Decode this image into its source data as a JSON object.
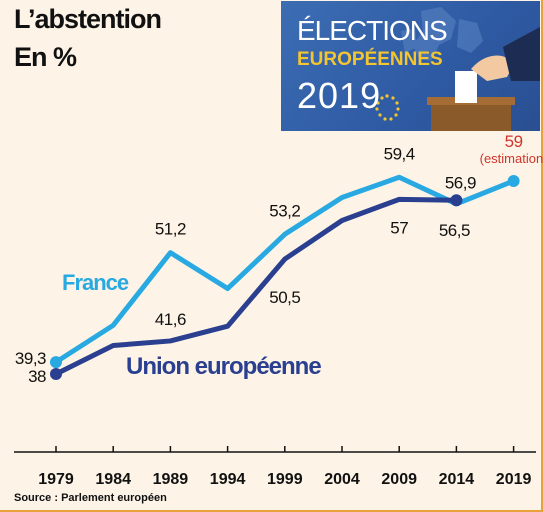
{
  "header": {
    "title": "L’abstention",
    "subtitle": "En %"
  },
  "banner": {
    "line1": "ÉLECTIONS",
    "line2": "EUROPÉENNES",
    "line3": "2019"
  },
  "source": "Source : Parlement européen",
  "colors": {
    "france": "#29a9e1",
    "ue": "#2a3f8f",
    "estimate": "#d2342b",
    "banner": "#2e5aa3"
  },
  "chart_data": {
    "type": "line",
    "x": [
      "1979",
      "1984",
      "1989",
      "1994",
      "1999",
      "2004",
      "2009",
      "2014",
      "2019"
    ],
    "series": [
      {
        "name": "France",
        "color": "#29a9e1",
        "values": [
          39.3,
          43.3,
          51.2,
          47.3,
          53.2,
          57.2,
          59.4,
          56.5,
          59
        ]
      },
      {
        "name": "Union européenne",
        "color": "#2a3f8f",
        "values": [
          38,
          41.1,
          41.6,
          43.2,
          50.5,
          54.7,
          57,
          56.9,
          null
        ]
      }
    ],
    "data_labels": [
      {
        "text": "39,3",
        "series": 0,
        "index": 0,
        "place": "left"
      },
      {
        "text": "38",
        "series": 1,
        "index": 0,
        "place": "left"
      },
      {
        "text": "51,2",
        "series": 0,
        "index": 2,
        "place": "above"
      },
      {
        "text": "41,6",
        "series": 1,
        "index": 2,
        "place": "above"
      },
      {
        "text": "53,2",
        "series": 0,
        "index": 4,
        "place": "above"
      },
      {
        "text": "50,5",
        "series": 1,
        "index": 4,
        "place": "below"
      },
      {
        "text": "59,4",
        "series": 0,
        "index": 6,
        "place": "above"
      },
      {
        "text": "57",
        "series": 1,
        "index": 6,
        "place": "below"
      },
      {
        "text": "56,9",
        "series": 1,
        "index": 7,
        "place": "above"
      },
      {
        "text": "56,5",
        "series": 0,
        "index": 7,
        "place": "below"
      },
      {
        "text": "59",
        "series": 0,
        "index": 8,
        "place": "above",
        "color": "#d2342b"
      },
      {
        "text": "(estimation)",
        "series": 0,
        "index": 8,
        "place": "above2",
        "color": "#d2342b"
      }
    ],
    "annotations": [
      {
        "text": "France",
        "series": 0
      },
      {
        "text": "Union européenne",
        "series": 1
      }
    ],
    "ylim": [
      33,
      64
    ],
    "xlabel": "",
    "ylabel": "",
    "grid": false
  }
}
